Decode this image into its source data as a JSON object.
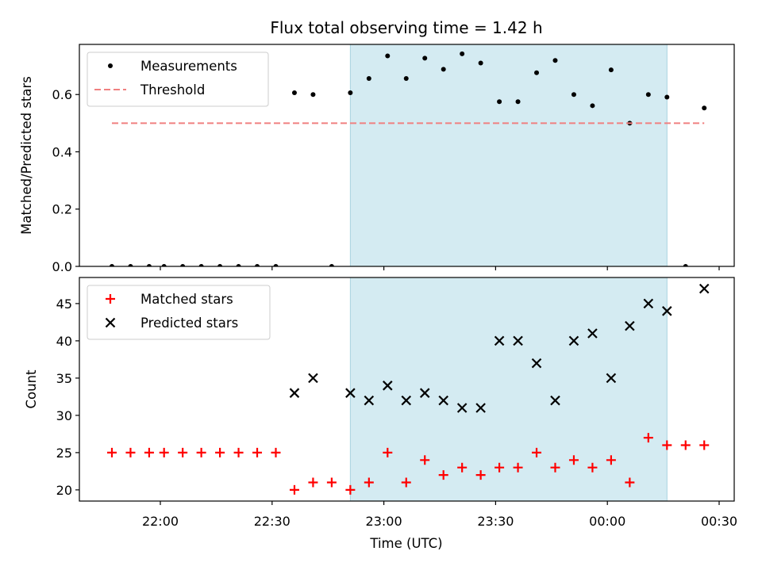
{
  "chart_data": {
    "title": "Flux total observing time = 1.42 h",
    "xlabel": "Time (UTC)",
    "x_ticks": [
      "22:00",
      "22:30",
      "23:00",
      "23:30",
      "00:00",
      "00:30"
    ],
    "observing_window": {
      "start": "22:51",
      "end": "00:16"
    },
    "panels": [
      {
        "type": "scatter",
        "ylabel": "Matched/Predicted stars",
        "ylim": [
          0,
          0.775
        ],
        "y_ticks": [
          "0.0",
          "0.2",
          "0.4",
          "0.6"
        ],
        "legend_position": "top-left",
        "series": [
          {
            "name": "Measurements",
            "marker": "dot",
            "color": "#000000",
            "points": [
              {
                "t": "21:47",
                "y": 0.0
              },
              {
                "t": "21:52",
                "y": 0.0
              },
              {
                "t": "21:57",
                "y": 0.0
              },
              {
                "t": "22:01",
                "y": 0.0
              },
              {
                "t": "22:06",
                "y": 0.0
              },
              {
                "t": "22:11",
                "y": 0.0
              },
              {
                "t": "22:16",
                "y": 0.0
              },
              {
                "t": "22:21",
                "y": 0.0
              },
              {
                "t": "22:26",
                "y": 0.0
              },
              {
                "t": "22:31",
                "y": 0.0
              },
              {
                "t": "22:36",
                "y": 0.606
              },
              {
                "t": "22:41",
                "y": 0.6
              },
              {
                "t": "22:46",
                "y": 0.0
              },
              {
                "t": "22:51",
                "y": 0.606
              },
              {
                "t": "22:56",
                "y": 0.656
              },
              {
                "t": "23:01",
                "y": 0.735
              },
              {
                "t": "23:06",
                "y": 0.656
              },
              {
                "t": "23:11",
                "y": 0.727
              },
              {
                "t": "23:16",
                "y": 0.688
              },
              {
                "t": "23:21",
                "y": 0.742
              },
              {
                "t": "23:26",
                "y": 0.71
              },
              {
                "t": "23:31",
                "y": 0.575
              },
              {
                "t": "23:36",
                "y": 0.575
              },
              {
                "t": "23:41",
                "y": 0.676
              },
              {
                "t": "23:46",
                "y": 0.719
              },
              {
                "t": "23:51",
                "y": 0.6
              },
              {
                "t": "23:56",
                "y": 0.561
              },
              {
                "t": "00:01",
                "y": 0.686
              },
              {
                "t": "00:06",
                "y": 0.5
              },
              {
                "t": "00:11",
                "y": 0.6
              },
              {
                "t": "00:16",
                "y": 0.591
              },
              {
                "t": "00:21",
                "y": 0.0
              },
              {
                "t": "00:26",
                "y": 0.553
              }
            ]
          },
          {
            "name": "Threshold",
            "marker": "dashed-line",
            "color": "#f08080",
            "points": [
              {
                "t": "21:47",
                "y": 0.5
              },
              {
                "t": "00:26",
                "y": 0.5
              }
            ]
          }
        ]
      },
      {
        "type": "scatter",
        "ylabel": "Count",
        "ylim": [
          18.5,
          48.5
        ],
        "y_ticks": [
          "20",
          "25",
          "30",
          "35",
          "40",
          "45"
        ],
        "legend_position": "top-left",
        "series": [
          {
            "name": "Matched stars",
            "marker": "plus",
            "color": "#ff0000",
            "points": [
              {
                "t": "21:47",
                "y": 25
              },
              {
                "t": "21:52",
                "y": 25
              },
              {
                "t": "21:57",
                "y": 25
              },
              {
                "t": "22:01",
                "y": 25
              },
              {
                "t": "22:06",
                "y": 25
              },
              {
                "t": "22:11",
                "y": 25
              },
              {
                "t": "22:16",
                "y": 25
              },
              {
                "t": "22:21",
                "y": 25
              },
              {
                "t": "22:26",
                "y": 25
              },
              {
                "t": "22:31",
                "y": 25
              },
              {
                "t": "22:36",
                "y": 20
              },
              {
                "t": "22:41",
                "y": 21
              },
              {
                "t": "22:46",
                "y": 21
              },
              {
                "t": "22:51",
                "y": 20
              },
              {
                "t": "22:56",
                "y": 21
              },
              {
                "t": "23:01",
                "y": 25
              },
              {
                "t": "23:06",
                "y": 21
              },
              {
                "t": "23:11",
                "y": 24
              },
              {
                "t": "23:16",
                "y": 22
              },
              {
                "t": "23:21",
                "y": 23
              },
              {
                "t": "23:26",
                "y": 22
              },
              {
                "t": "23:31",
                "y": 23
              },
              {
                "t": "23:36",
                "y": 23
              },
              {
                "t": "23:41",
                "y": 25
              },
              {
                "t": "23:46",
                "y": 23
              },
              {
                "t": "23:51",
                "y": 24
              },
              {
                "t": "23:56",
                "y": 23
              },
              {
                "t": "00:01",
                "y": 24
              },
              {
                "t": "00:06",
                "y": 21
              },
              {
                "t": "00:11",
                "y": 27
              },
              {
                "t": "00:16",
                "y": 26
              },
              {
                "t": "00:21",
                "y": 26
              },
              {
                "t": "00:26",
                "y": 26
              }
            ]
          },
          {
            "name": "Predicted stars",
            "marker": "x",
            "color": "#000000",
            "points": [
              {
                "t": "22:36",
                "y": 33
              },
              {
                "t": "22:41",
                "y": 35
              },
              {
                "t": "22:51",
                "y": 33
              },
              {
                "t": "22:56",
                "y": 32
              },
              {
                "t": "23:01",
                "y": 34
              },
              {
                "t": "23:06",
                "y": 32
              },
              {
                "t": "23:11",
                "y": 33
              },
              {
                "t": "23:16",
                "y": 32
              },
              {
                "t": "23:21",
                "y": 31
              },
              {
                "t": "23:26",
                "y": 31
              },
              {
                "t": "23:31",
                "y": 40
              },
              {
                "t": "23:36",
                "y": 40
              },
              {
                "t": "23:41",
                "y": 37
              },
              {
                "t": "23:46",
                "y": 32
              },
              {
                "t": "23:51",
                "y": 40
              },
              {
                "t": "23:56",
                "y": 41
              },
              {
                "t": "00:01",
                "y": 35
              },
              {
                "t": "00:06",
                "y": 42
              },
              {
                "t": "00:11",
                "y": 45
              },
              {
                "t": "00:16",
                "y": 44
              },
              {
                "t": "00:26",
                "y": 47
              }
            ]
          }
        ]
      }
    ]
  },
  "colors": {
    "observing_window_fill": "#d4ebf2",
    "axes_edge": "#000000",
    "legend_edge": "#cccccc"
  }
}
